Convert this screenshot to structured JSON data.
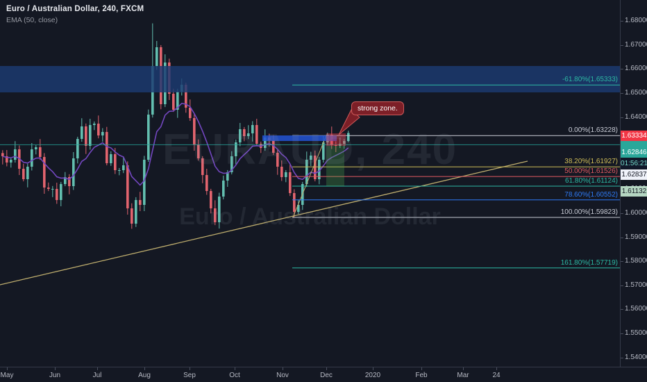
{
  "legend": {
    "symbol_title": "Euro / Australian Dollar, 240, FXCM",
    "indicator": "EMA (50, close)"
  },
  "watermark": {
    "line1": "EURAUD, 240",
    "line2": "Euro / Australian Dollar"
  },
  "colors": {
    "background": "#141823",
    "axis_text": "#b7bac4",
    "up": "#63bfb0",
    "down": "#e2646e",
    "ema": "#7347c0",
    "watermark": "rgba(150,157,175,0.12)",
    "band_navy": "#1c3a72",
    "zone_blue": "#2254d3",
    "stop_red": "#f23645",
    "profit_green": "#4caf50",
    "callout_fill": "#7c1f27",
    "callout_border": "#cf5a5a",
    "trendline": "#bfae6e",
    "teal_line": "#26a69a",
    "fib_gray": "#c9ccd6",
    "fib_yellow": "#d0bd58",
    "fib_red": "#e25a62",
    "fib_teal": "#2cb9a4",
    "fib_blue": "#2e7bf6",
    "label_last_bg": "#f23645",
    "label_teal_bg": "#2aa79a",
    "countdown_bg": "#10182a",
    "countdown_text": "#74d9c9",
    "label_white_bg": "#f0f3fa",
    "label_green_bg": "#b5d6c2",
    "dark_text": "#131722"
  },
  "price_axis": {
    "ticks": [
      "1.68000",
      "1.67000",
      "1.66000",
      "1.65000",
      "1.64000",
      "1.63000",
      "1.62000",
      "1.61000",
      "1.60000",
      "1.59000",
      "1.58000",
      "1.57000",
      "1.56000",
      "1.55000",
      "1.54000"
    ]
  },
  "overlay_labels": [
    {
      "text": "1.63334",
      "kind": "last"
    },
    {
      "text": "1.62846",
      "kind": "teal"
    },
    {
      "text": "01:56:21",
      "kind": "countdown"
    },
    {
      "text": "1.62837",
      "kind": "white"
    },
    {
      "text": "1.61132",
      "kind": "green"
    }
  ],
  "time_axis": {
    "labels": [
      "May",
      "Jun",
      "Jul",
      "Aug",
      "Sep",
      "Oct",
      "Nov",
      "Dec",
      "2020",
      "Feb",
      "Mar",
      "24"
    ]
  },
  "chart_data": {
    "type": "candlestick",
    "symbol": "EURAUD",
    "exchange": "FXCM",
    "interval": "240",
    "title": "Euro / Australian Dollar, 240, FXCM",
    "indicator": {
      "name": "EMA",
      "period": 50,
      "source": "close"
    },
    "last_price": 1.63334,
    "bar_countdown": "01:56:21",
    "y_axis": {
      "min": 1.54,
      "max": 1.68,
      "tick_step": 0.01
    },
    "x_axis_labels": [
      "May",
      "Jun",
      "Jul",
      "Aug",
      "Sep",
      "Oct",
      "Nov",
      "Dec",
      "2020",
      "Feb",
      "Mar",
      "24"
    ],
    "callout": {
      "text": "strong zone."
    },
    "horizontal_lines": [
      {
        "price": 1.62846,
        "color_key": "teal_line"
      }
    ],
    "supply_band": {
      "price_top": 1.66125,
      "price_bottom": 1.65026
    },
    "blue_zone": {
      "price_top": 1.63234,
      "price_bottom": 1.63003
    },
    "short_position": {
      "stop_price": 1.63321,
      "entry_price": 1.62801,
      "target_price": 1.61124
    },
    "trendline": {
      "price_start": 1.5702,
      "price_end": 1.62166
    },
    "fib_retracement": {
      "anchor_high": 1.63228,
      "anchor_low": 1.59823,
      "levels": [
        {
          "label": "-61.80%(1.65333)",
          "pct": -61.8,
          "price": 1.65333,
          "color_key": "fib_teal"
        },
        {
          "label": "0.00%(1.63228)",
          "pct": 0,
          "price": 1.63228,
          "color_key": "fib_gray"
        },
        {
          "label": "38.20%(1.61927)",
          "pct": 38.2,
          "price": 1.61927,
          "color_key": "fib_yellow"
        },
        {
          "label": "50.00%(1.61526)",
          "pct": 50,
          "price": 1.61526,
          "color_key": "fib_red"
        },
        {
          "label": "61.80%(1.61124)",
          "pct": 61.8,
          "price": 1.61124,
          "color_key": "fib_teal"
        },
        {
          "label": "78.60%(1.60552)",
          "pct": 78.6,
          "price": 1.60552,
          "color_key": "fib_blue"
        },
        {
          "label": "100.00%(1.59823)",
          "pct": 100,
          "price": 1.59823,
          "color_key": "fib_gray"
        },
        {
          "label": "161.80%(1.57719)",
          "pct": 161.8,
          "price": 1.57719,
          "color_key": "fib_teal"
        }
      ]
    },
    "candles": [
      [
        1.625,
        1.6262,
        1.62027,
        1.62367
      ],
      [
        1.62367,
        1.62627,
        1.61947,
        1.62107
      ],
      [
        1.62107,
        1.62313,
        1.61897,
        1.62223
      ],
      [
        1.62223,
        1.62996,
        1.62103,
        1.62656
      ],
      [
        1.62656,
        1.62816,
        1.61587,
        1.61847
      ],
      [
        1.61847,
        1.62057,
        1.61323,
        1.61413
      ],
      [
        1.61413,
        1.62054,
        1.61073,
        1.61934
      ],
      [
        1.61934,
        1.62916,
        1.61774,
        1.62656
      ],
      [
        1.62656,
        1.62833,
        1.62446,
        1.62743
      ],
      [
        1.62743,
        1.63083,
        1.62218,
        1.62338
      ],
      [
        1.62338,
        1.62498,
        1.60806,
        1.61066
      ],
      [
        1.61066,
        1.61276,
        1.60919,
        1.61009
      ],
      [
        1.61009,
        1.61129,
        1.60669,
        1.61009
      ],
      [
        1.61009,
        1.61269,
        1.60386,
        1.60546
      ],
      [
        1.60546,
        1.61301,
        1.60286,
        1.61211
      ],
      [
        1.61211,
        1.6171,
        1.61121,
        1.615
      ],
      [
        1.615,
        1.6162,
        1.60784,
        1.61124
      ],
      [
        1.61124,
        1.6254,
        1.60964,
        1.6228
      ],
      [
        1.6228,
        1.6318,
        1.6207,
        1.6309
      ],
      [
        1.6309,
        1.6395,
        1.6297,
        1.6361
      ],
      [
        1.6361,
        1.6373,
        1.62461,
        1.62801
      ],
      [
        1.62801,
        1.63927,
        1.62641,
        1.63667
      ],
      [
        1.63667,
        1.63815,
        1.63457,
        1.63725
      ],
      [
        1.63725,
        1.64065,
        1.63114,
        1.63234
      ],
      [
        1.63234,
        1.63539,
        1.62974,
        1.63379
      ],
      [
        1.63379,
        1.63589,
        1.61988,
        1.62078
      ],
      [
        1.62078,
        1.62574,
        1.61968,
        1.62454
      ],
      [
        1.62454,
        1.62714,
        1.61629,
        1.61789
      ],
      [
        1.61789,
        1.61879,
        1.61579,
        1.61789
      ],
      [
        1.61789,
        1.62332,
        1.61669,
        1.61992
      ],
      [
        1.61992,
        1.62152,
        1.59939,
        1.60199
      ],
      [
        1.60199,
        1.60409,
        1.5935,
        1.59564
      ],
      [
        1.59564,
        1.60666,
        1.59424,
        1.60546
      ],
      [
        1.60546,
        1.60886,
        1.60084,
        1.60344
      ],
      [
        1.60344,
        1.62383,
        1.60084,
        1.62223
      ],
      [
        1.62223,
        1.64311,
        1.62133,
        1.64101
      ],
      [
        1.64101,
        1.679,
        1.63981,
        1.66124
      ],
      [
        1.66124,
        1.67165,
        1.65964,
        1.66905
      ],
      [
        1.66905,
        1.66995,
        1.64325,
        1.64535
      ],
      [
        1.64535,
        1.66609,
        1.64415,
        1.66269
      ],
      [
        1.66269,
        1.66429,
        1.64708,
        1.64968
      ],
      [
        1.64968,
        1.65178,
        1.64214,
        1.64304
      ],
      [
        1.64304,
        1.65175,
        1.63964,
        1.65055
      ],
      [
        1.65055,
        1.65604,
        1.64895,
        1.65344
      ],
      [
        1.65344,
        1.65434,
        1.6418,
        1.6439
      ],
      [
        1.6439,
        1.6473,
        1.63837,
        1.63957
      ],
      [
        1.63957,
        1.64117,
        1.62599,
        1.62859
      ],
      [
        1.62859,
        1.63069,
        1.6219,
        1.6228
      ],
      [
        1.6228,
        1.6237,
        1.61247,
        1.61587
      ],
      [
        1.61587,
        1.61847,
        1.60762,
        1.60922
      ],
      [
        1.60922,
        1.61012,
        1.59989,
        1.60199
      ],
      [
        1.60199,
        1.60539,
        1.59502,
        1.59622
      ],
      [
        1.59622,
        1.60851,
        1.59362,
        1.60691
      ],
      [
        1.60691,
        1.61565,
        1.60571,
        1.61355
      ],
      [
        1.61355,
        1.61792,
        1.61095,
        1.61702
      ],
      [
        1.61702,
        1.62577,
        1.61612,
        1.62367
      ],
      [
        1.62367,
        1.63065,
        1.62027,
        1.62945
      ],
      [
        1.62945,
        1.63754,
        1.62785,
        1.63494
      ],
      [
        1.63494,
        1.63584,
        1.62995,
        1.63205
      ],
      [
        1.63205,
        1.63661,
        1.63085,
        1.63321
      ],
      [
        1.63321,
        1.63827,
        1.62981,
        1.63667
      ],
      [
        1.63667,
        1.63927,
        1.62797,
        1.62887
      ],
      [
        1.62887,
        1.62977,
        1.62504,
        1.62714
      ],
      [
        1.62714,
        1.63487,
        1.62594,
        1.63147
      ],
      [
        1.63147,
        1.63307,
        1.62772,
        1.63032
      ],
      [
        1.63032,
        1.63242,
        1.62422,
        1.62512
      ],
      [
        1.62512,
        1.62632,
        1.61594,
        1.61934
      ],
      [
        1.61934,
        1.62194,
        1.6134,
        1.615
      ],
      [
        1.615,
        1.61792,
        1.6129,
        1.61702
      ],
      [
        1.61702,
        1.62042,
        1.60715,
        1.60835
      ],
      [
        1.60835,
        1.60995,
        1.59823,
        1.60055
      ],
      [
        1.60055,
        1.60554,
        1.59964,
        1.60344
      ],
      [
        1.60344,
        1.61301,
        1.60134,
        1.61211
      ],
      [
        1.61211,
        1.62563,
        1.61091,
        1.62223
      ],
      [
        1.62223,
        1.62556,
        1.61963,
        1.62396
      ],
      [
        1.62396,
        1.62606,
        1.61323,
        1.61413
      ],
      [
        1.61413,
        1.62343,
        1.61203,
        1.62223
      ],
      [
        1.62223,
        1.63205,
        1.62103,
        1.62945
      ],
      [
        1.62945,
        1.63353,
        1.62824,
        1.63263
      ],
      [
        1.63263,
        1.63603,
        1.6267,
        1.6283
      ],
      [
        1.6283,
        1.6299,
        1.62541,
        1.62801
      ],
      [
        1.62801,
        1.63147,
        1.62711,
        1.62887
      ],
      [
        1.62887,
        1.63093,
        1.62677,
        1.63003
      ],
      [
        1.63003,
        1.6343,
        1.6295,
        1.63334
      ]
    ]
  }
}
